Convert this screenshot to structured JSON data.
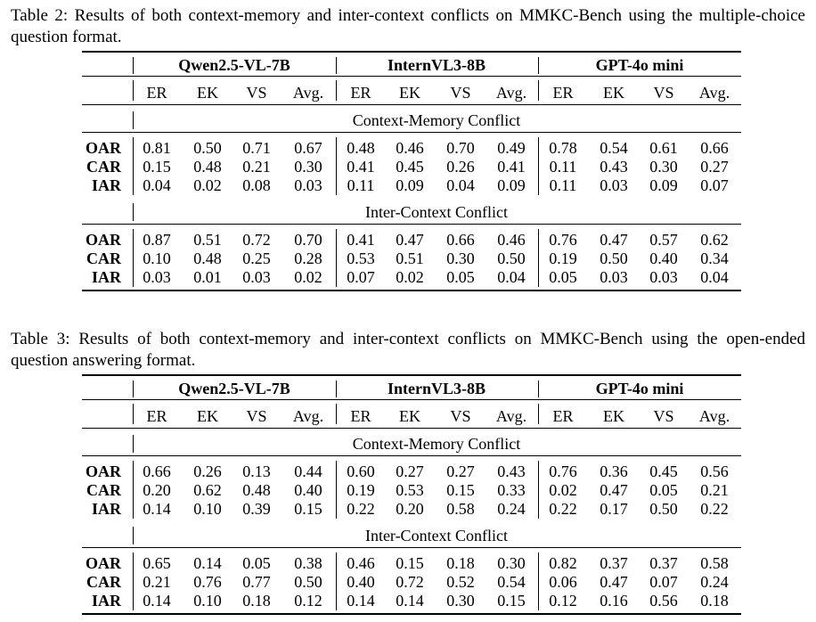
{
  "tables": [
    {
      "caption": "Table 2: Results of both context-memory and inter-context conflicts on MMKC-Bench using the multiple-choice question format.",
      "models": [
        "Qwen2.5-VL-7B",
        "InternVL3-8B",
        "GPT-4o mini"
      ],
      "metrics": [
        "ER",
        "EK",
        "VS",
        "Avg."
      ],
      "sections": [
        {
          "title": "Context-Memory Conflict",
          "rows": [
            {
              "label": "OAR",
              "values": [
                "0.81",
                "0.50",
                "0.71",
                "0.67",
                "0.48",
                "0.46",
                "0.70",
                "0.49",
                "0.78",
                "0.54",
                "0.61",
                "0.66"
              ]
            },
            {
              "label": "CAR",
              "values": [
                "0.15",
                "0.48",
                "0.21",
                "0.30",
                "0.41",
                "0.45",
                "0.26",
                "0.41",
                "0.11",
                "0.43",
                "0.30",
                "0.27"
              ]
            },
            {
              "label": "IAR",
              "values": [
                "0.04",
                "0.02",
                "0.08",
                "0.03",
                "0.11",
                "0.09",
                "0.04",
                "0.09",
                "0.11",
                "0.03",
                "0.09",
                "0.07"
              ]
            }
          ]
        },
        {
          "title": "Inter-Context Conflict",
          "rows": [
            {
              "label": "OAR",
              "values": [
                "0.87",
                "0.51",
                "0.72",
                "0.70",
                "0.41",
                "0.47",
                "0.66",
                "0.46",
                "0.76",
                "0.47",
                "0.57",
                "0.62"
              ]
            },
            {
              "label": "CAR",
              "values": [
                "0.10",
                "0.48",
                "0.25",
                "0.28",
                "0.53",
                "0.51",
                "0.30",
                "0.50",
                "0.19",
                "0.50",
                "0.40",
                "0.34"
              ]
            },
            {
              "label": "IAR",
              "values": [
                "0.03",
                "0.01",
                "0.03",
                "0.02",
                "0.07",
                "0.02",
                "0.05",
                "0.04",
                "0.05",
                "0.03",
                "0.03",
                "0.04"
              ]
            }
          ]
        }
      ]
    },
    {
      "caption": "Table 3: Results of both context-memory and inter-context conflicts on MMKC-Bench using the open-ended question answering format.",
      "models": [
        "Qwen2.5-VL-7B",
        "InternVL3-8B",
        "GPT-4o mini"
      ],
      "metrics": [
        "ER",
        "EK",
        "VS",
        "Avg."
      ],
      "sections": [
        {
          "title": "Context-Memory Conflict",
          "rows": [
            {
              "label": "OAR",
              "values": [
                "0.66",
                "0.26",
                "0.13",
                "0.44",
                "0.60",
                "0.27",
                "0.27",
                "0.43",
                "0.76",
                "0.36",
                "0.45",
                "0.56"
              ]
            },
            {
              "label": "CAR",
              "values": [
                "0.20",
                "0.62",
                "0.48",
                "0.40",
                "0.19",
                "0.53",
                "0.15",
                "0.33",
                "0.02",
                "0.47",
                "0.05",
                "0.21"
              ]
            },
            {
              "label": "IAR",
              "values": [
                "0.14",
                "0.10",
                "0.39",
                "0.15",
                "0.22",
                "0.20",
                "0.58",
                "0.24",
                "0.22",
                "0.17",
                "0.50",
                "0.22"
              ]
            }
          ]
        },
        {
          "title": "Inter-Context Conflict",
          "rows": [
            {
              "label": "OAR",
              "values": [
                "0.65",
                "0.14",
                "0.05",
                "0.38",
                "0.46",
                "0.15",
                "0.18",
                "0.30",
                "0.82",
                "0.37",
                "0.37",
                "0.58"
              ]
            },
            {
              "label": "CAR",
              "values": [
                "0.21",
                "0.76",
                "0.77",
                "0.50",
                "0.40",
                "0.72",
                "0.52",
                "0.54",
                "0.06",
                "0.47",
                "0.07",
                "0.24"
              ]
            },
            {
              "label": "IAR",
              "values": [
                "0.14",
                "0.10",
                "0.18",
                "0.12",
                "0.14",
                "0.14",
                "0.30",
                "0.15",
                "0.12",
                "0.16",
                "0.56",
                "0.18"
              ]
            }
          ]
        }
      ]
    }
  ]
}
